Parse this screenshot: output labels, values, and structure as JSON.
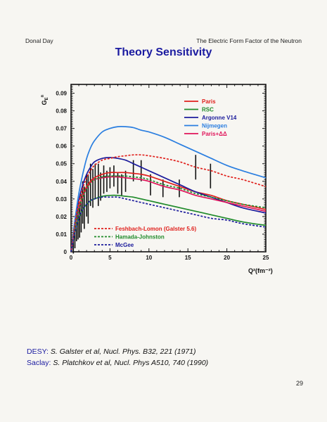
{
  "header": {
    "left": "Donal Day",
    "right": "The Electric Form Factor of the Neutron"
  },
  "title": "Theory Sensitivity",
  "chart_data": {
    "type": "line",
    "xlabel": "Q²(fm⁻²)",
    "ylabel": "G_E^n",
    "xlim": [
      0,
      25
    ],
    "ylim": [
      0,
      0.095
    ],
    "xticks": [
      0,
      5,
      10,
      15,
      20,
      25
    ],
    "yticks": [
      0.01,
      0.02,
      0.03,
      0.04,
      0.05,
      0.06,
      0.07,
      0.08,
      0.09
    ],
    "ytick_labels": [
      "0.01",
      "0.02",
      "0.03",
      "0.04",
      "0.05",
      "0.06",
      "0.07",
      "0.08",
      "0.09"
    ],
    "legend_top": "top-right",
    "legend_bottom": "bottom-left",
    "x": [
      0,
      0.5,
      1,
      1.5,
      2,
      2.5,
      3,
      4,
      5,
      6,
      7,
      8,
      9,
      10,
      12,
      14,
      16,
      18,
      20,
      22,
      25
    ],
    "series": [
      {
        "name": "Paris",
        "color": "#e0201c",
        "dash": "solid",
        "legend": "top",
        "values": [
          0,
          0.014,
          0.025,
          0.032,
          0.037,
          0.04,
          0.042,
          0.044,
          0.045,
          0.045,
          0.045,
          0.0445,
          0.044,
          0.043,
          0.04,
          0.037,
          0.034,
          0.032,
          0.029,
          0.027,
          0.024
        ]
      },
      {
        "name": "RSC",
        "color": "#1f8a2a",
        "dash": "solid",
        "legend": "top",
        "values": [
          0,
          0.011,
          0.019,
          0.024,
          0.027,
          0.029,
          0.03,
          0.0315,
          0.032,
          0.032,
          0.0315,
          0.031,
          0.03,
          0.029,
          0.027,
          0.025,
          0.023,
          0.021,
          0.019,
          0.017,
          0.015
        ]
      },
      {
        "name": "Argonne V14",
        "color": "#1c1c9c",
        "dash": "solid",
        "legend": "top",
        "values": [
          0,
          0.016,
          0.029,
          0.038,
          0.044,
          0.048,
          0.051,
          0.053,
          0.0535,
          0.053,
          0.052,
          0.05,
          0.048,
          0.046,
          0.042,
          0.038,
          0.034,
          0.031,
          0.028,
          0.025,
          0.022
        ]
      },
      {
        "name": "Nijmegen",
        "color": "#2a7ee0",
        "dash": "solid",
        "legend": "top",
        "values": [
          0,
          0.018,
          0.033,
          0.044,
          0.053,
          0.059,
          0.063,
          0.068,
          0.07,
          0.071,
          0.071,
          0.0705,
          0.069,
          0.068,
          0.065,
          0.061,
          0.057,
          0.053,
          0.049,
          0.046,
          0.042
        ]
      },
      {
        "name": "Paris+ΔΔ",
        "color": "#e0145a",
        "dash": "solid",
        "legend": "top",
        "values": [
          0,
          0.013,
          0.024,
          0.031,
          0.036,
          0.039,
          0.041,
          0.042,
          0.0425,
          0.0425,
          0.042,
          0.0415,
          0.041,
          0.04,
          0.037,
          0.035,
          0.032,
          0.03,
          0.028,
          0.026,
          0.023
        ]
      },
      {
        "name": "Feshbach-Lomon (Galster 5.6)",
        "color": "#e0201c",
        "dash": "dashed",
        "legend": "bottom",
        "values": [
          0,
          0.016,
          0.028,
          0.036,
          0.042,
          0.046,
          0.049,
          0.052,
          0.053,
          0.054,
          0.0545,
          0.055,
          0.055,
          0.0545,
          0.053,
          0.051,
          0.048,
          0.046,
          0.043,
          0.041,
          0.037
        ]
      },
      {
        "name": "Hamada-Johnston",
        "color": "#1f8a2a",
        "dash": "dashed",
        "legend": "bottom",
        "values": [
          0,
          0.013,
          0.024,
          0.031,
          0.036,
          0.039,
          0.041,
          0.0425,
          0.043,
          0.043,
          0.043,
          0.0425,
          0.042,
          0.041,
          0.038,
          0.036,
          0.033,
          0.031,
          0.029,
          0.027,
          0.025
        ]
      },
      {
        "name": "McGee",
        "color": "#1c1c9c",
        "dash": "dashed",
        "legend": "bottom",
        "values": [
          0,
          0.011,
          0.019,
          0.024,
          0.027,
          0.029,
          0.03,
          0.031,
          0.031,
          0.031,
          0.03,
          0.029,
          0.028,
          0.027,
          0.025,
          0.023,
          0.021,
          0.019,
          0.018,
          0.016,
          0.014
        ]
      }
    ],
    "data_points": [
      {
        "x": 0.3,
        "y": 0.004,
        "err": 0.005
      },
      {
        "x": 0.5,
        "y": 0.008,
        "err": 0.006
      },
      {
        "x": 0.7,
        "y": 0.013,
        "err": 0.007
      },
      {
        "x": 0.9,
        "y": 0.015,
        "err": 0.008
      },
      {
        "x": 1.1,
        "y": 0.018,
        "err": 0.01
      },
      {
        "x": 1.3,
        "y": 0.022,
        "err": 0.011
      },
      {
        "x": 1.5,
        "y": 0.028,
        "err": 0.012
      },
      {
        "x": 1.7,
        "y": 0.025,
        "err": 0.012
      },
      {
        "x": 2.0,
        "y": 0.032,
        "err": 0.012
      },
      {
        "x": 2.2,
        "y": 0.03,
        "err": 0.014
      },
      {
        "x": 2.5,
        "y": 0.038,
        "err": 0.012
      },
      {
        "x": 2.8,
        "y": 0.036,
        "err": 0.011
      },
      {
        "x": 3.1,
        "y": 0.04,
        "err": 0.01
      },
      {
        "x": 3.5,
        "y": 0.038,
        "err": 0.012
      },
      {
        "x": 3.8,
        "y": 0.037,
        "err": 0.008
      },
      {
        "x": 4.2,
        "y": 0.041,
        "err": 0.008
      },
      {
        "x": 4.6,
        "y": 0.04,
        "err": 0.006
      },
      {
        "x": 5.0,
        "y": 0.042,
        "err": 0.006
      },
      {
        "x": 5.5,
        "y": 0.043,
        "err": 0.006
      },
      {
        "x": 6.0,
        "y": 0.039,
        "err": 0.006
      },
      {
        "x": 6.5,
        "y": 0.038,
        "err": 0.006
      },
      {
        "x": 7.0,
        "y": 0.04,
        "err": 0.006
      },
      {
        "x": 8.0,
        "y": 0.046,
        "err": 0.006
      },
      {
        "x": 9.0,
        "y": 0.046,
        "err": 0.006
      },
      {
        "x": 10.2,
        "y": 0.038,
        "err": 0.006
      },
      {
        "x": 11.8,
        "y": 0.036,
        "err": 0.005
      },
      {
        "x": 13.9,
        "y": 0.036,
        "err": 0.005
      },
      {
        "x": 16.0,
        "y": 0.048,
        "err": 0.007
      },
      {
        "x": 17.9,
        "y": 0.043,
        "err": 0.007
      }
    ]
  },
  "references": {
    "desy_label": "DESY:",
    "desy_text": "S. Galster et al, Nucl. Phys. B32, 221 (1971)",
    "saclay_label": "Saclay:",
    "saclay_text": "S. Platchkov et al, Nucl. Phys A510, 740 (1990)"
  },
  "page_number": "29"
}
